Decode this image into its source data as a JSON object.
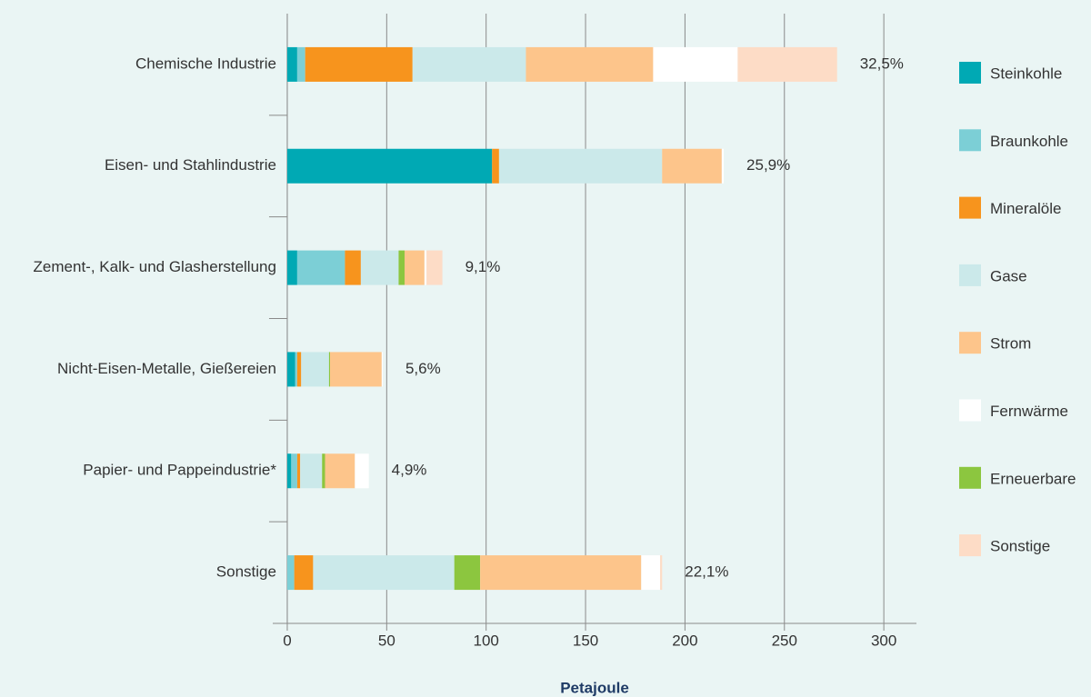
{
  "chart_data": {
    "type": "stacked_barh",
    "categories": [
      "Chemische Industrie",
      "Eisen- und Stahlindustrie",
      "Zement-, Kalk- und Glasherstellung",
      "Nicht-Eisen-Metalle, Gießereien",
      "Papier- und Pappeindustrie*",
      "Sonstige"
    ],
    "series": [
      {
        "name": "Steinkohle",
        "color": "#00a9b4",
        "values": [
          5,
          103,
          5,
          4,
          2,
          0
        ]
      },
      {
        "name": "Braunkohle",
        "color": "#7ccfd6",
        "values": [
          4,
          0,
          24,
          1,
          3,
          3.5
        ]
      },
      {
        "name": "Mineralöle",
        "color": "#f7941d",
        "values": [
          54,
          3.5,
          8,
          2,
          1.5,
          9.5
        ]
      },
      {
        "name": "Gase",
        "color": "#cbe9ea",
        "values": [
          57,
          82,
          19,
          14,
          11,
          71
        ]
      },
      {
        "name": "Strom",
        "color": "#fdc58b",
        "values": [
          64,
          30,
          10,
          26,
          15,
          81
        ]
      },
      {
        "name": "Fernwärme",
        "color": "#ffffff",
        "values": [
          42.5,
          1,
          1,
          0.5,
          7,
          9.5
        ]
      },
      {
        "name": "Erneuerbare",
        "color": "#8cc63f",
        "values": [
          0,
          0,
          3,
          0.5,
          1.5,
          13
        ]
      },
      {
        "name": "Sonstige",
        "color": "#fddcc6",
        "values": [
          50,
          0,
          8,
          0,
          0,
          1
        ]
      }
    ],
    "stack_order": [
      0,
      1,
      2,
      3,
      6,
      4,
      5,
      7
    ],
    "shares": [
      32.5,
      25.9,
      9.1,
      5.6,
      4.9,
      22.1
    ],
    "share_labels": [
      "32,5%",
      "25,9%",
      "9,1%",
      "5,6%",
      "4,9%",
      "22,1%"
    ],
    "xlabel": "Petajoule",
    "xlim": [
      -7.3,
      316.4
    ],
    "xticks": [
      0,
      50,
      100,
      150,
      200,
      250,
      300
    ],
    "grid": true,
    "legend": "right"
  }
}
